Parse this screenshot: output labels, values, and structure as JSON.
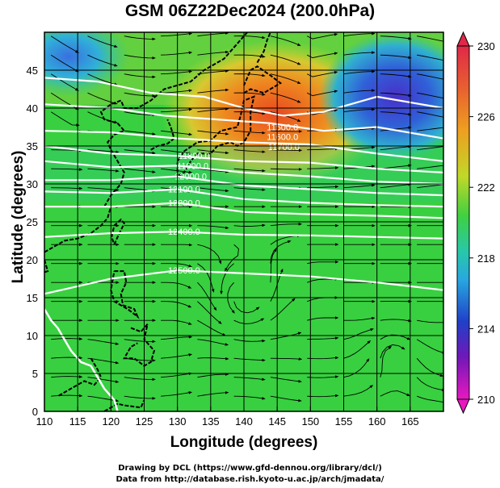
{
  "title": "GSM 06Z22Dec2024 (200.0hPa)",
  "xlabel": "Longitude (degrees)",
  "ylabel": "Latitude  (degrees)",
  "credit_line1": "Drawing by DCL (https://www.gfd-dennou.org/library/dcl/)",
  "credit_line2": "Data from http://database.rish.kyoto-u.ac.jp/arch/jmadata/",
  "map": {
    "lon_range": [
      110,
      170
    ],
    "lat_range": [
      0,
      50
    ],
    "lon_ticks": [
      "110",
      "115",
      "120",
      "125",
      "130",
      "135",
      "140",
      "145",
      "150",
      "155",
      "160",
      "165"
    ],
    "lat_ticks": [
      "0",
      "5",
      "10",
      "15",
      "20",
      "25",
      "30",
      "35",
      "40",
      "45"
    ],
    "field": "temperature (shaded) with streamlines and geopotential height contours",
    "height_contour_labels": [
      {
        "text": "11500.0",
        "lon": 145.8,
        "lat": 37.5
      },
      {
        "text": "11600.0",
        "lon": 145.8,
        "lat": 36.2
      },
      {
        "text": "11700.0",
        "lon": 146.0,
        "lat": 34.9
      },
      {
        "text": "11800.0",
        "lon": 132.5,
        "lat": 33.7
      },
      {
        "text": "11900.0",
        "lon": 132.3,
        "lat": 32.4
      },
      {
        "text": "12000.0",
        "lon": 132.0,
        "lat": 31.0
      },
      {
        "text": "12100.0",
        "lon": 131.0,
        "lat": 29.3
      },
      {
        "text": "12200.0",
        "lon": 131.0,
        "lat": 27.5
      },
      {
        "text": "12400.0",
        "lon": 131.0,
        "lat": 23.7
      },
      {
        "text": "12500.0",
        "lon": 131.0,
        "lat": 18.6
      }
    ]
  },
  "colorbar": {
    "ticks": [
      "230",
      "226",
      "222",
      "218",
      "214",
      "210"
    ],
    "colors": [
      "#e03060",
      "#e46040",
      "#e8a020",
      "#c8d830",
      "#50d840",
      "#30c8a0",
      "#30a0e0",
      "#3050d0",
      "#6020c0",
      "#e020c0"
    ]
  }
}
